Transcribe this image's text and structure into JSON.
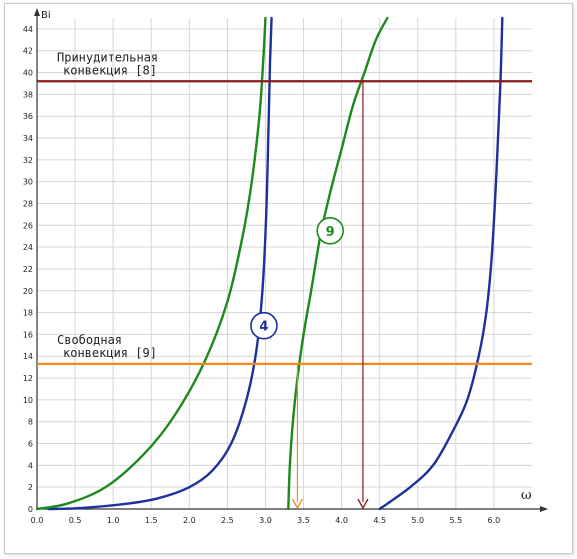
{
  "chart_data": {
    "type": "line",
    "xlabel": "ω",
    "ylabel": "Bi",
    "xlim": [
      0.0,
      6.5
    ],
    "ylim": [
      0,
      45
    ],
    "x_ticks": [
      "0.0",
      "0.5",
      "1.0",
      "1.5",
      "2.0",
      "2.5",
      "3.0",
      "3.5",
      "4.0",
      "4.5",
      "5.0",
      "5.5",
      "6.0"
    ],
    "y_ticks": [
      "0",
      "2",
      "4",
      "6",
      "8",
      "10",
      "12",
      "14",
      "16",
      "18",
      "20",
      "22",
      "24",
      "26",
      "28",
      "30",
      "32",
      "34",
      "36",
      "38",
      "40",
      "42",
      "44"
    ],
    "grid": true,
    "colors": {
      "blue": "#1f2f9b",
      "green": "#1b8a1b",
      "red": "#8b1a1a",
      "orange": "#ef8a1e"
    },
    "series": [
      {
        "color": "blue",
        "x": [
          0.15,
          0.6,
          1.2,
          1.6,
          2.0,
          2.3,
          2.55,
          2.75,
          2.88,
          2.96,
          3.01,
          3.04,
          3.06,
          3.08
        ],
        "y": [
          0,
          0.1,
          0.5,
          1.0,
          2.0,
          3.5,
          6.0,
          10.0,
          14.5,
          20.0,
          27.0,
          35.0,
          41.0,
          45.0
        ]
      },
      {
        "color": "green",
        "x": [
          0.0,
          0.4,
          0.9,
          1.4,
          1.8,
          2.2,
          2.5,
          2.7,
          2.82,
          2.92,
          2.97,
          3.0
        ],
        "y": [
          0,
          0.5,
          2.0,
          5.0,
          8.5,
          13.5,
          19.0,
          25.0,
          30.0,
          36.0,
          41.0,
          45.0
        ]
      },
      {
        "color": "green",
        "x": [
          3.3,
          3.32,
          3.36,
          3.42,
          3.5,
          3.6,
          3.72,
          3.85,
          4.0,
          4.15,
          4.3,
          4.45,
          4.6
        ],
        "y": [
          0,
          4.0,
          8.0,
          12.0,
          16.0,
          20.0,
          25.0,
          29.0,
          33.0,
          37.0,
          40.0,
          43.0,
          45.0
        ]
      },
      {
        "color": "blue",
        "x": [
          4.5,
          4.9,
          5.2,
          5.45,
          5.65,
          5.8,
          5.9,
          5.97,
          6.02,
          6.06,
          6.09,
          6.11
        ],
        "y": [
          0,
          2.0,
          4.0,
          7.0,
          10.0,
          14.0,
          18.0,
          23.0,
          29.0,
          35.0,
          40.0,
          45.0
        ]
      }
    ],
    "reference_lines": [
      {
        "color": "red",
        "y": 39.2,
        "label": [
          "Принудительная",
          "конвекция [8]"
        ]
      },
      {
        "color": "orange",
        "y": 13.3,
        "label": [
          "Свободная",
          "конвекция [9]"
        ]
      }
    ],
    "drop_lines": [
      {
        "color": "red",
        "x": 4.28,
        "from_y": 39.2
      },
      {
        "color": "orange",
        "x": 3.42,
        "from_y": 13.3
      }
    ],
    "markers": [
      {
        "text": "4",
        "color": "blue",
        "x": 2.98,
        "y": 16.8
      },
      {
        "text": "9",
        "color": "green",
        "x": 3.85,
        "y": 25.5
      }
    ]
  }
}
